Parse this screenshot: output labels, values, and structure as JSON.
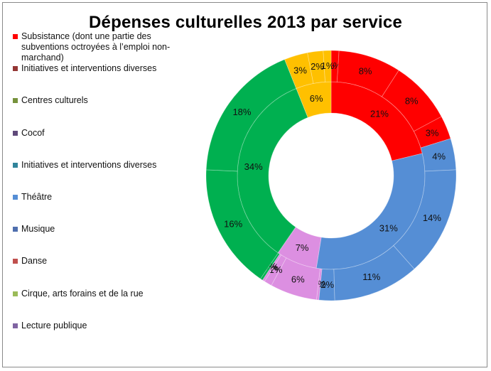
{
  "chart_data": {
    "type": "pie",
    "subtype": "doughnut",
    "title": "Dépenses culturelles 2013 par service",
    "legend_position": "left",
    "legend": [
      {
        "label": "Subsistance (dont une partie des subventions octroyées à l’emploi non-marchand)",
        "color": "#ff0000"
      },
      {
        "label": "Initiatives et interventions diverses",
        "color": "#943634"
      },
      {
        "label": "Centres culturels",
        "color": "#76923c"
      },
      {
        "label": "Cocof",
        "color": "#5f497a"
      },
      {
        "label": "Initiatives et interventions diverses",
        "color": "#31849b"
      },
      {
        "label": "Théâtre",
        "color": "#558ed5"
      },
      {
        "label": "Musique",
        "color": "#4f6fae"
      },
      {
        "label": "Danse",
        "color": "#c0504d"
      },
      {
        "label": "Cirque, arts forains et de la rue",
        "color": "#9bbb59"
      },
      {
        "label": "Lecture publique",
        "color": "#8064a2"
      }
    ],
    "inner_ring": {
      "slices": [
        {
          "label": "21%",
          "value": 21,
          "color": "#ff0000"
        },
        {
          "label": "31%",
          "value": 31,
          "color": "#558ed5"
        },
        {
          "label": "7%",
          "value": 7,
          "color": "#dc8fe1"
        },
        {
          "label": "34%",
          "value": 34,
          "color": "#00b050"
        },
        {
          "label": "6%",
          "value": 6,
          "color": "#ffc000"
        }
      ]
    },
    "outer_ring": {
      "slices": [
        {
          "label": "1%",
          "value": 1,
          "color": "#ff0000"
        },
        {
          "label": "8%",
          "value": 8,
          "color": "#ff0000"
        },
        {
          "label": "8%",
          "value": 8,
          "color": "#ff0000"
        },
        {
          "label": "3%",
          "value": 3,
          "color": "#ff0000"
        },
        {
          "label": "4%",
          "value": 4,
          "color": "#558ed5"
        },
        {
          "label": "14%",
          "value": 14,
          "color": "#558ed5"
        },
        {
          "label": "11%",
          "value": 11,
          "color": "#558ed5"
        },
        {
          "label": "2%",
          "value": 2,
          "color": "#558ed5"
        },
        {
          "label": "0%",
          "value": 0.3,
          "color": "#dc8fe1"
        },
        {
          "label": "6%",
          "value": 6,
          "color": "#dc8fe1"
        },
        {
          "label": "1%",
          "value": 1,
          "color": "#dc8fe1"
        },
        {
          "label": "0%",
          "value": 0.3,
          "color": "#dc8fe1"
        },
        {
          "label": "0%",
          "value": 0.3,
          "color": "#00b050"
        },
        {
          "label": "16%",
          "value": 16,
          "color": "#00b050"
        },
        {
          "label": "18%",
          "value": 18,
          "color": "#00b050"
        },
        {
          "label": "3%",
          "value": 3,
          "color": "#ffc000"
        },
        {
          "label": "2%",
          "value": 2,
          "color": "#ffc000"
        },
        {
          "label": "1%",
          "value": 1,
          "color": "#ffc000"
        }
      ]
    }
  }
}
